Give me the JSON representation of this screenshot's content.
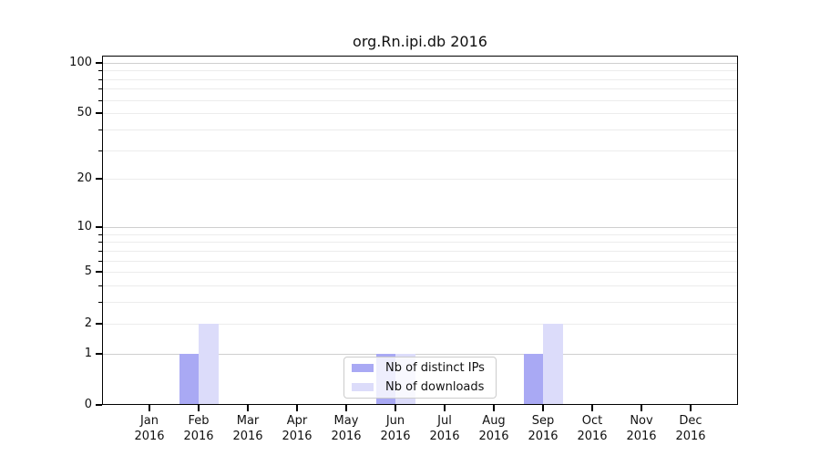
{
  "title": "org.Rn.ipi.db 2016",
  "chart_data": {
    "type": "bar",
    "categories": [
      "Jan",
      "Feb",
      "Mar",
      "Apr",
      "May",
      "Jun",
      "Jul",
      "Aug",
      "Sep",
      "Oct",
      "Nov",
      "Dec"
    ],
    "category_year": "2016",
    "series": [
      {
        "name": "Nb of distinct IPs",
        "color": "#a9a9f4",
        "values": [
          0,
          1,
          0,
          0,
          0,
          1,
          0,
          0,
          1,
          0,
          0,
          0
        ]
      },
      {
        "name": "Nb of downloads",
        "color": "#dcdcfa",
        "values": [
          0,
          2,
          0,
          0,
          0,
          1,
          0,
          0,
          2,
          0,
          0,
          0
        ]
      }
    ],
    "yscale": "log1p",
    "ylim": [
      0,
      110
    ],
    "y_major_ticks": [
      0,
      1,
      2,
      5,
      10,
      20,
      50,
      100
    ],
    "y_minor_gridlines": [
      3,
      4,
      6,
      7,
      8,
      9,
      30,
      40,
      60,
      70,
      80,
      90
    ],
    "y_emphasized_gridlines": [
      1,
      10,
      100
    ],
    "grid": "horizontal",
    "legend_position": "bottom-center",
    "colors": {
      "major_grid": "#cfcfcf",
      "minor_grid": "#ececec",
      "axis": "#000000",
      "background": "#ffffff"
    }
  }
}
